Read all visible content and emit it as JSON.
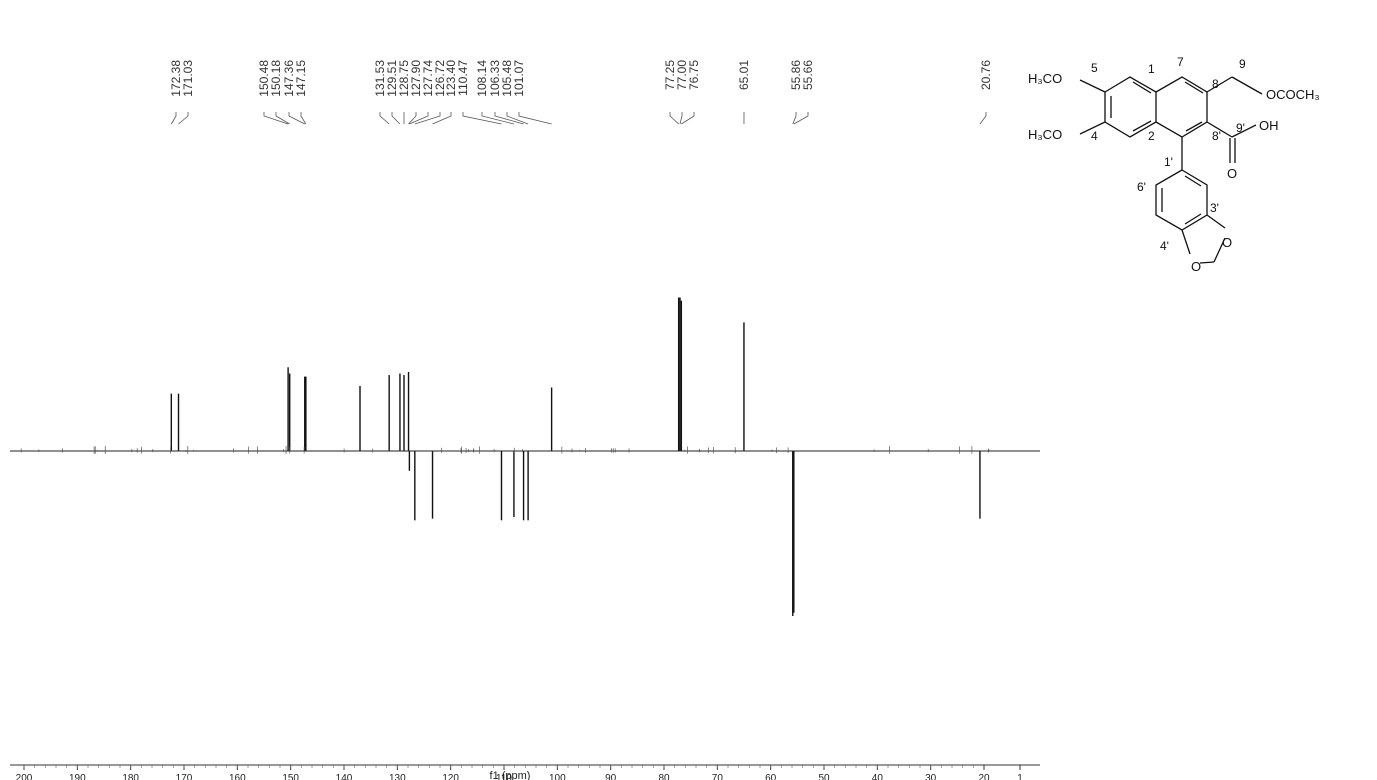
{
  "chart_data": {
    "type": "line",
    "xlabel": "f1 (ppm)",
    "x_ticks": [
      "200",
      "190",
      "180",
      "170",
      "160",
      "150",
      "140",
      "130",
      "120",
      "110",
      "100",
      "90",
      "80",
      "70",
      "60",
      "50",
      "40",
      "30",
      "20",
      "1"
    ],
    "xlim": [
      200,
      1
    ],
    "ylim": [
      -1.0,
      1.0
    ],
    "baseline": 0,
    "peak_labels": [
      "172.38",
      "171.03",
      "150.48",
      "150.18",
      "147.36",
      "147.15",
      "131.53",
      "129.51",
      "128.75",
      "127.90",
      "127.74",
      "126.72",
      "123.40",
      "110.47",
      "108.14",
      "106.33",
      "105.48",
      "101.07",
      "77.25",
      "77.00",
      "76.75",
      "65.01",
      "55.86",
      "55.66",
      "20.76"
    ],
    "peaks": [
      {
        "x": 172.38,
        "y": 0.37
      },
      {
        "x": 171.03,
        "y": 0.37
      },
      {
        "x": 150.48,
        "y": 0.54
      },
      {
        "x": 150.18,
        "y": 0.5
      },
      {
        "x": 147.36,
        "y": 0.48
      },
      {
        "x": 147.15,
        "y": 0.48
      },
      {
        "x": 137.0,
        "y": 0.42
      },
      {
        "x": 131.53,
        "y": 0.49
      },
      {
        "x": 129.51,
        "y": 0.5
      },
      {
        "x": 128.75,
        "y": 0.49
      },
      {
        "x": 127.9,
        "y": 0.51
      },
      {
        "x": 127.74,
        "y": -0.12
      },
      {
        "x": 126.72,
        "y": -0.42
      },
      {
        "x": 123.4,
        "y": -0.41
      },
      {
        "x": 110.47,
        "y": -0.42
      },
      {
        "x": 108.14,
        "y": -0.4
      },
      {
        "x": 106.33,
        "y": -0.42
      },
      {
        "x": 105.48,
        "y": -0.42
      },
      {
        "x": 101.07,
        "y": 0.41
      },
      {
        "x": 77.25,
        "y": 0.99
      },
      {
        "x": 77.0,
        "y": 0.99
      },
      {
        "x": 76.75,
        "y": 0.97
      },
      {
        "x": 65.01,
        "y": 0.83
      },
      {
        "x": 55.86,
        "y": -1.0
      },
      {
        "x": 55.66,
        "y": -0.98
      },
      {
        "x": 20.76,
        "y": -0.41
      }
    ],
    "grid": false
  },
  "structure": {
    "groups": [
      "H₃CO",
      "H₃CO",
      "OCOCH₃",
      "OH",
      "O",
      "O",
      "O"
    ],
    "atom_numbers": [
      "5",
      "4",
      "1",
      "2",
      "7",
      "8",
      "9",
      "8'",
      "9'",
      "1'",
      "6'",
      "3'",
      "4'"
    ]
  }
}
